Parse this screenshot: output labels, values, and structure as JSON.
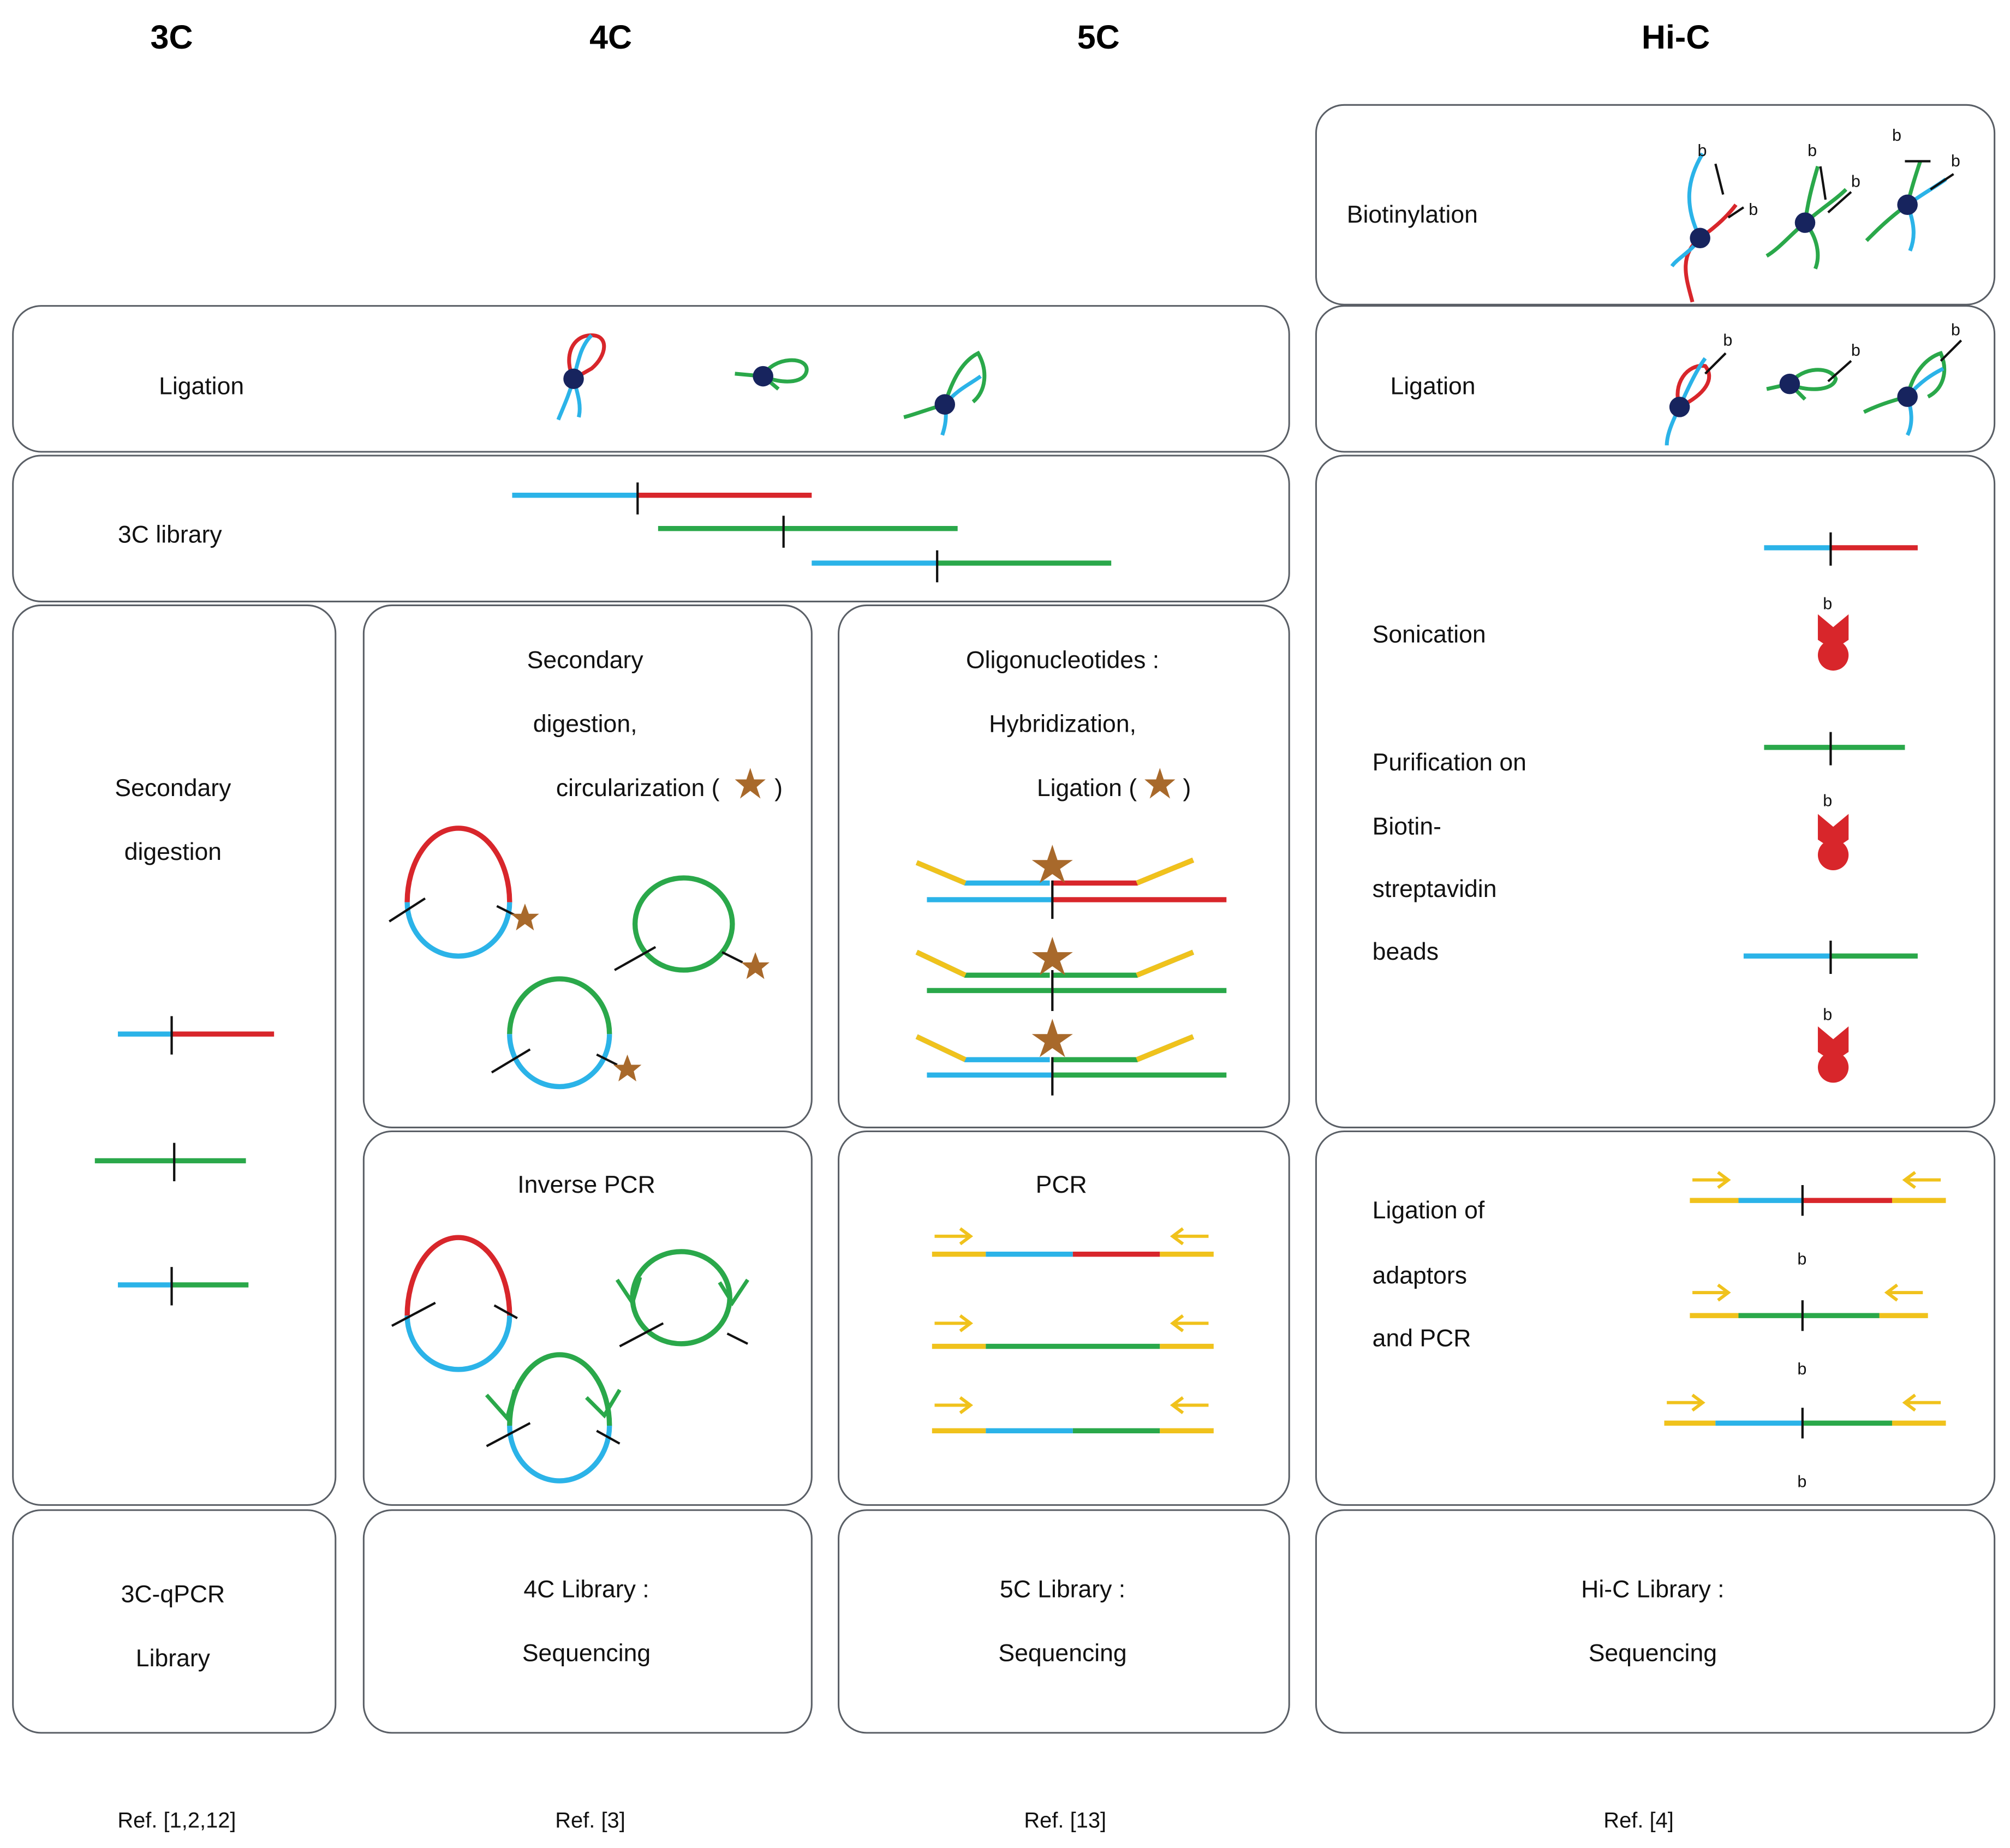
{
  "colors": {
    "blue": "#2bb3e8",
    "red": "#d8262b",
    "green": "#2aa84a",
    "yellow": "#f0c21c",
    "navy": "#17245e",
    "star": "#a8692b",
    "border": "#5a5f66"
  },
  "headers": {
    "c3": "3C",
    "c4": "4C",
    "c5": "5C",
    "hic": "Hi-C"
  },
  "steps": {
    "biotinylation": "Biotinylation",
    "ligation": "Ligation",
    "ligation_hic": "Ligation",
    "library_3c": "3C library",
    "secondary_digestion": [
      "Secondary",
      "digestion"
    ],
    "secondary_digestion_circ": [
      "Secondary",
      "digestion,",
      "circularization (",
      ")"
    ],
    "oligo_hybridization": [
      "Oligonucleotides :",
      "Hybridization,",
      "Ligation (",
      ")"
    ],
    "sonication": "Sonication",
    "purification": [
      "Purification on",
      "Biotin-",
      "streptavidin",
      "beads"
    ],
    "inverse_pcr": "Inverse PCR",
    "pcr": "PCR",
    "ligation_adaptors": [
      "Ligation of",
      "adaptors",
      "and PCR"
    ]
  },
  "libraries": {
    "c3": [
      "3C-qPCR",
      "Library"
    ],
    "c4": [
      "4C Library :",
      "Sequencing"
    ],
    "c5": [
      "5C Library :",
      "Sequencing"
    ],
    "hic": [
      "Hi-C Library :",
      "Sequencing"
    ]
  },
  "biotin_label": "b",
  "refs": {
    "c3": "Ref. [1,2,12]",
    "c4": "Ref. [3]",
    "c5": "Ref. [13]",
    "hic": "Ref. [4]"
  },
  "icons": [
    "crosslink-loop-icon",
    "star-icon",
    "circle-fragment-icon",
    "arrow-primer-icon",
    "streptavidin-bead-icon"
  ]
}
